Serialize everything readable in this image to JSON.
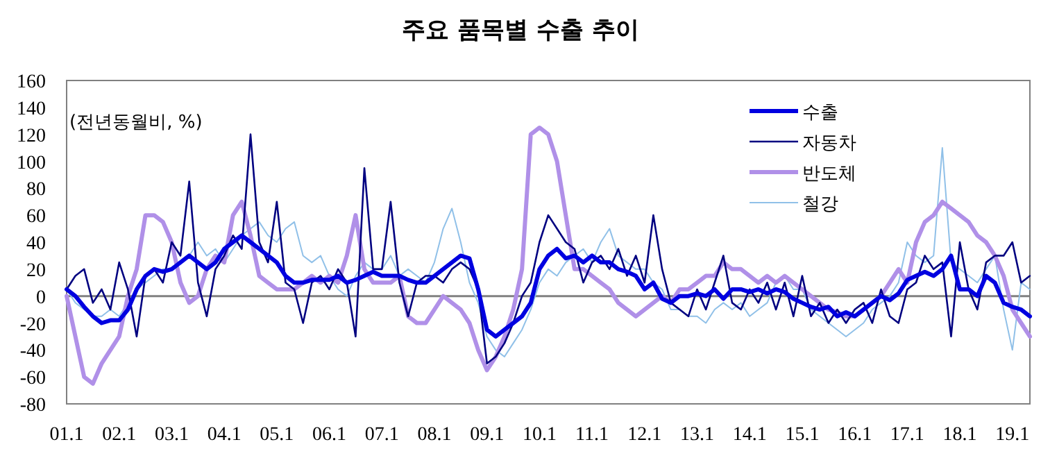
{
  "chart_data": {
    "type": "line",
    "title": "주요 품목별 수출 추이",
    "annotations": [
      "(전년동월비, %)"
    ],
    "categories": [
      "01.1",
      null,
      null,
      null,
      null,
      null,
      "02.1",
      null,
      null,
      null,
      null,
      null,
      "03.1",
      null,
      null,
      null,
      null,
      null,
      "04.1",
      null,
      null,
      null,
      null,
      null,
      "05.1",
      null,
      null,
      null,
      null,
      null,
      "06.1",
      null,
      null,
      null,
      null,
      null,
      "07.1",
      null,
      null,
      null,
      null,
      null,
      "08.1",
      null,
      null,
      null,
      null,
      null,
      "09.1",
      null,
      null,
      null,
      null,
      null,
      "10.1",
      null,
      null,
      null,
      null,
      null,
      "11.1",
      null,
      null,
      null,
      null,
      null,
      "12.1",
      null,
      null,
      null,
      null,
      null,
      "13.1",
      null,
      null,
      null,
      null,
      null,
      "14.1",
      null,
      null,
      null,
      null,
      null,
      "15.1",
      null,
      null,
      null,
      null,
      null,
      "16.1",
      null,
      null,
      null,
      null,
      null,
      "17.1",
      null,
      null,
      null,
      null,
      null,
      "18.1",
      null,
      null,
      null,
      null,
      null,
      "19.1",
      null,
      null
    ],
    "series": [
      {
        "name": "수출",
        "color": "#0000e0",
        "values": [
          5,
          0,
          -8,
          -15,
          -20,
          -18,
          -18,
          -10,
          5,
          15,
          20,
          18,
          20,
          25,
          30,
          25,
          20,
          25,
          35,
          40,
          45,
          40,
          35,
          30,
          25,
          15,
          10,
          10,
          12,
          12,
          12,
          15,
          10,
          12,
          15,
          18,
          15,
          15,
          15,
          12,
          10,
          10,
          15,
          20,
          25,
          30,
          28,
          5,
          -25,
          -30,
          -25,
          -20,
          -15,
          -5,
          20,
          30,
          35,
          28,
          30,
          25,
          30,
          25,
          25,
          20,
          18,
          15,
          5,
          10,
          -2,
          -5,
          0,
          0,
          2,
          0,
          5,
          -2,
          5,
          5,
          3,
          5,
          2,
          5,
          3,
          -2,
          -5,
          -8,
          -10,
          -8,
          -15,
          -12,
          -15,
          -10,
          -5,
          0,
          -3,
          2,
          12,
          15,
          18,
          15,
          20,
          30,
          5,
          5,
          0,
          15,
          10,
          -5,
          -8,
          -10,
          -15
        ]
      },
      {
        "name": "자동차",
        "color": "#000080",
        "values": [
          5,
          15,
          20,
          -5,
          5,
          -10,
          25,
          5,
          -30,
          15,
          20,
          10,
          40,
          30,
          85,
          10,
          -15,
          20,
          30,
          45,
          35,
          120,
          40,
          25,
          70,
          10,
          5,
          -20,
          10,
          15,
          5,
          20,
          10,
          -30,
          95,
          20,
          20,
          70,
          10,
          -15,
          10,
          15,
          15,
          10,
          20,
          25,
          20,
          5,
          -50,
          -45,
          -35,
          -20,
          0,
          10,
          40,
          60,
          50,
          40,
          35,
          10,
          25,
          30,
          20,
          35,
          15,
          30,
          10,
          60,
          20,
          -5,
          -10,
          -15,
          5,
          -10,
          10,
          30,
          -5,
          -10,
          5,
          -5,
          10,
          -10,
          10,
          -15,
          15,
          -15,
          -5,
          -20,
          -10,
          -20,
          -10,
          -5,
          -20,
          5,
          -15,
          -20,
          5,
          10,
          30,
          20,
          25,
          -30,
          40,
          5,
          -10,
          25,
          30,
          30,
          40,
          10,
          15
        ]
      },
      {
        "name": "반도체",
        "color": "#b090e8",
        "values": [
          0,
          -30,
          -60,
          -65,
          -50,
          -40,
          -30,
          0,
          20,
          60,
          60,
          55,
          40,
          10,
          -5,
          0,
          20,
          30,
          25,
          60,
          70,
          45,
          15,
          10,
          5,
          5,
          5,
          10,
          15,
          10,
          15,
          10,
          30,
          60,
          20,
          10,
          10,
          10,
          15,
          -15,
          -20,
          -20,
          -10,
          0,
          -5,
          -10,
          -20,
          -40,
          -55,
          -45,
          -30,
          -10,
          20,
          120,
          125,
          120,
          100,
          60,
          20,
          20,
          15,
          10,
          5,
          -5,
          -10,
          -15,
          -10,
          -5,
          0,
          -5,
          5,
          5,
          10,
          15,
          15,
          25,
          20,
          20,
          15,
          10,
          15,
          10,
          15,
          10,
          5,
          0,
          -5,
          -10,
          -12,
          -15,
          -15,
          -10,
          -5,
          0,
          10,
          20,
          10,
          40,
          55,
          60,
          70,
          65,
          60,
          55,
          45,
          40,
          30,
          15,
          -10,
          -20,
          -30
        ]
      },
      {
        "name": "철강",
        "color": "#90c0e8",
        "values": [
          5,
          -5,
          -10,
          -15,
          -15,
          -10,
          -15,
          -5,
          5,
          10,
          15,
          20,
          20,
          25,
          30,
          40,
          30,
          35,
          25,
          35,
          45,
          50,
          55,
          45,
          40,
          50,
          55,
          30,
          25,
          30,
          15,
          5,
          0,
          15,
          25,
          20,
          20,
          30,
          15,
          20,
          15,
          10,
          25,
          50,
          65,
          40,
          10,
          -5,
          -30,
          -40,
          -45,
          -35,
          -25,
          -10,
          10,
          20,
          15,
          25,
          30,
          35,
          25,
          40,
          50,
          30,
          25,
          20,
          20,
          10,
          5,
          -10,
          -10,
          -15,
          -15,
          -20,
          -10,
          -5,
          -10,
          -5,
          -15,
          -10,
          -5,
          10,
          15,
          5,
          5,
          -10,
          -15,
          -20,
          -25,
          -30,
          -25,
          -20,
          -10,
          -5,
          0,
          10,
          40,
          30,
          25,
          30,
          110,
          25,
          20,
          15,
          10,
          20,
          30,
          -10,
          -40,
          10,
          5
        ]
      }
    ],
    "ylim": [
      -80,
      160
    ],
    "yticks": [
      -80,
      -60,
      -40,
      -20,
      0,
      20,
      40,
      60,
      80,
      100,
      120,
      140,
      160
    ],
    "ref_lines": [
      {
        "axis": "y",
        "value": 0,
        "color": "#808080"
      }
    ],
    "legend": "top right",
    "grid": false,
    "line_style": "solid"
  }
}
